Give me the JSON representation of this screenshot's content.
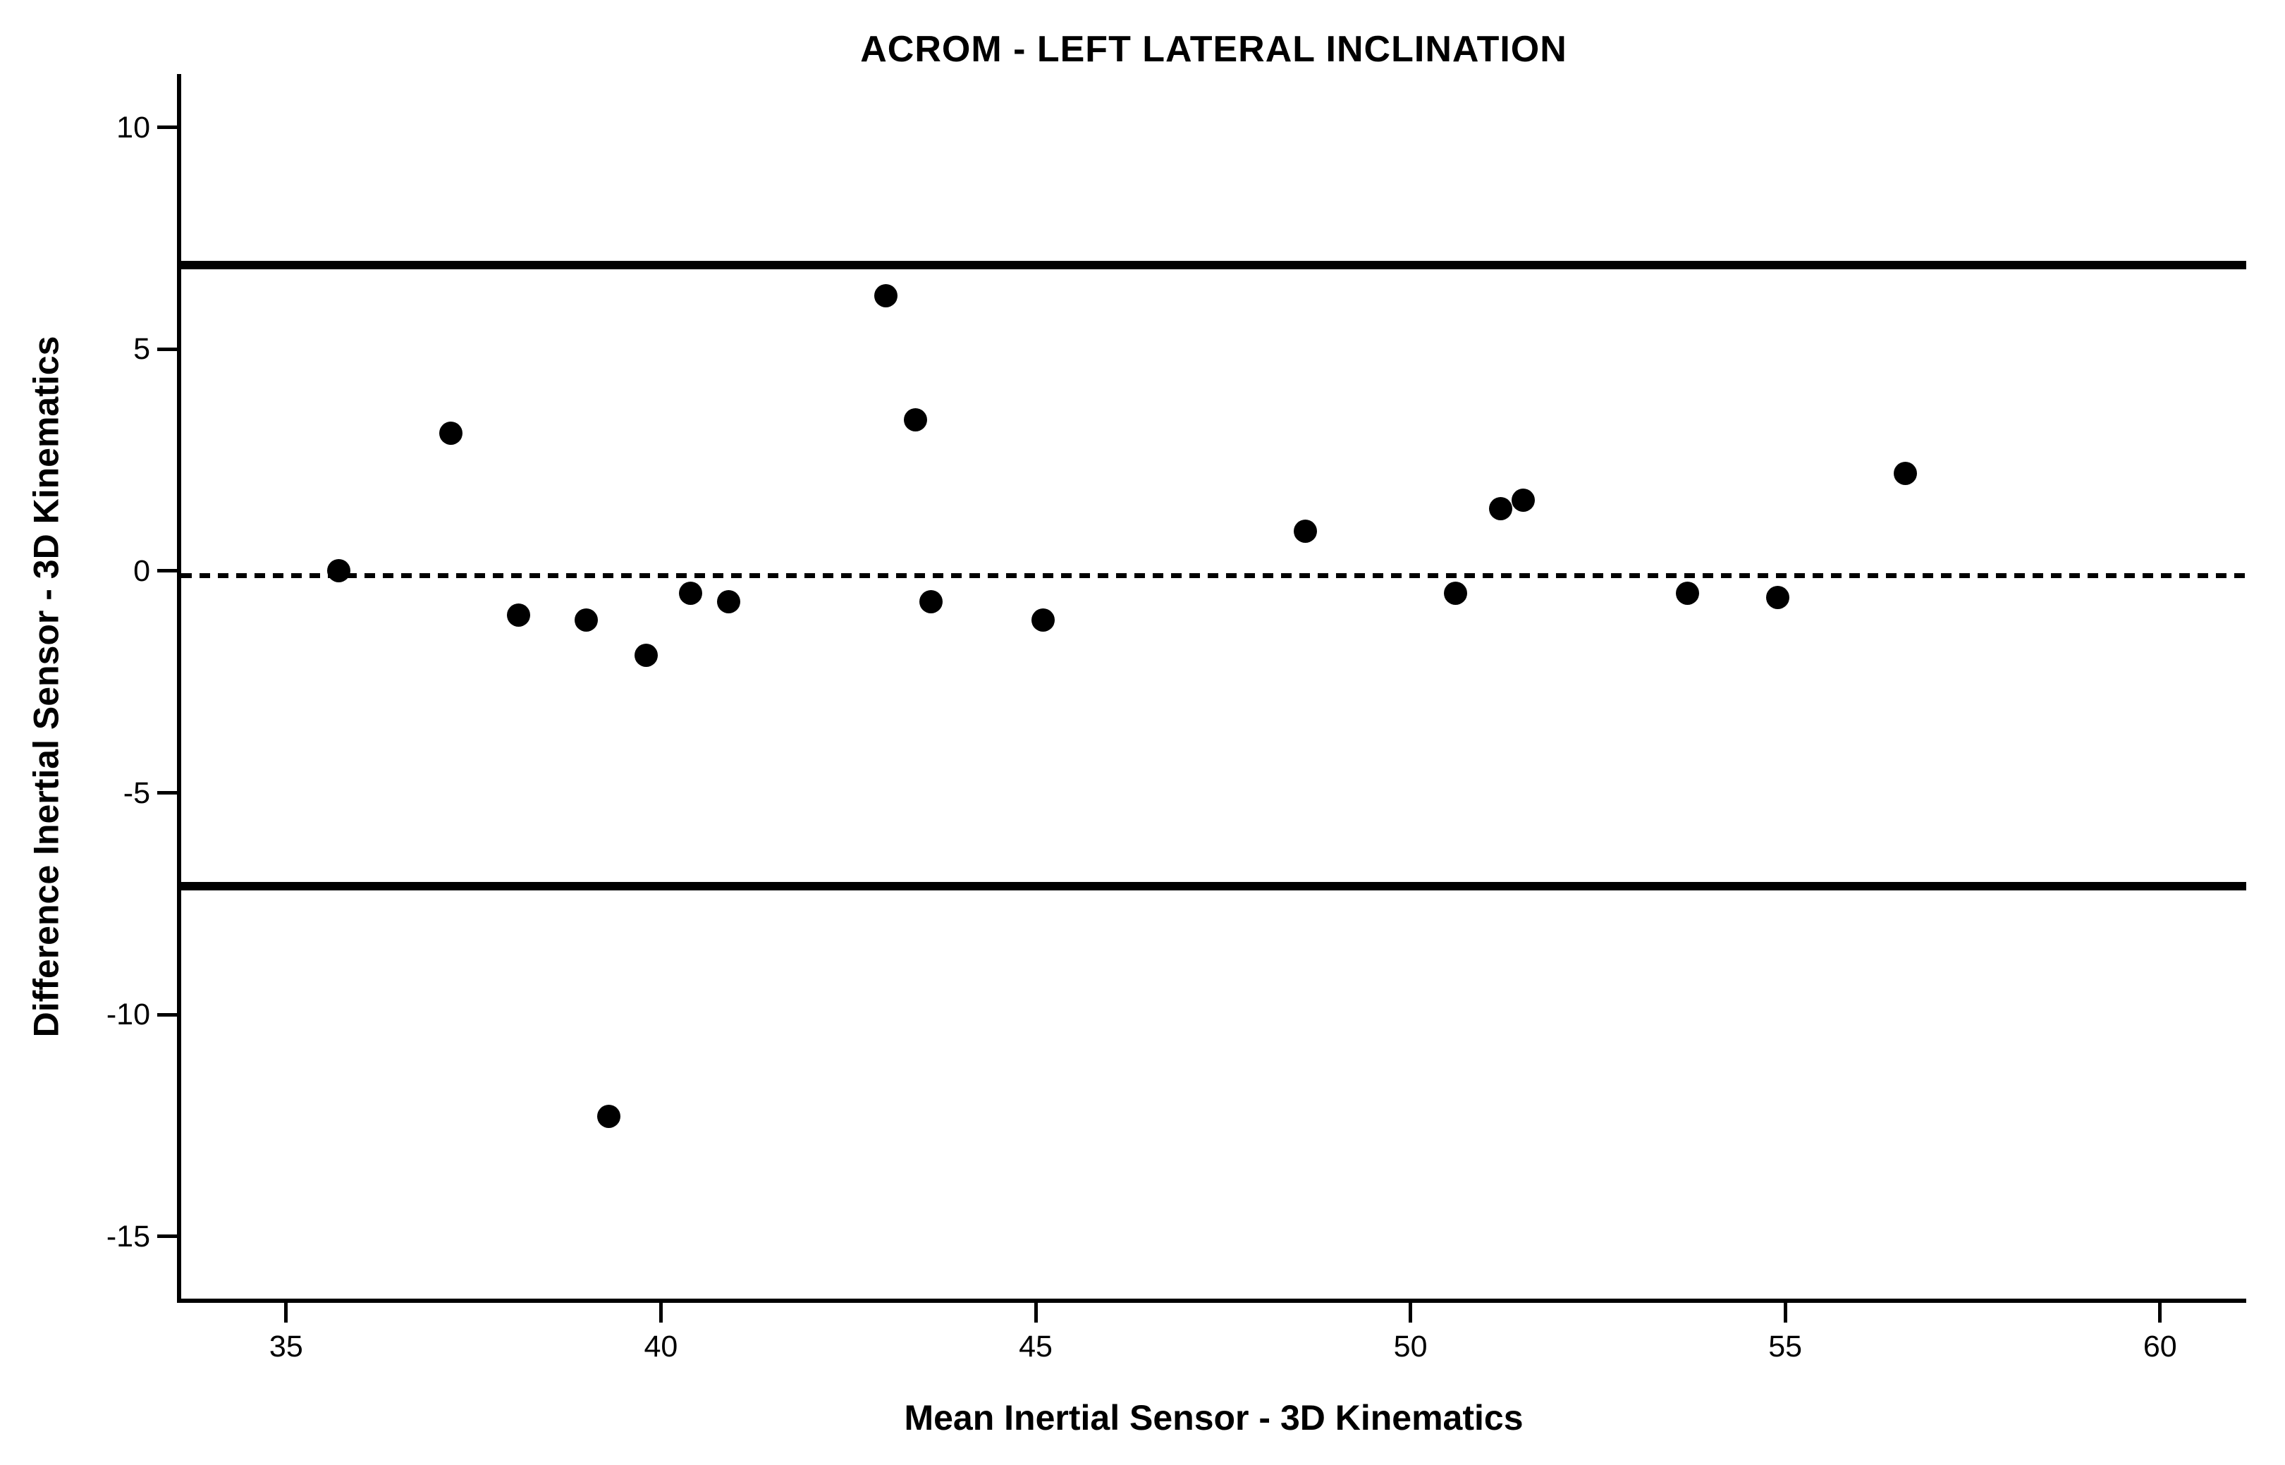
{
  "chart_data": {
    "type": "scatter",
    "title": "ACROM - LEFT LATERAL INCLINATION",
    "xlabel": "Mean Inertial Sensor - 3D Kinematics",
    "ylabel": "Difference Inertial Sensor - 3D Kinematics",
    "xlim": [
      33.6,
      61.15
    ],
    "ylim": [
      -16.4,
      11.2
    ],
    "x_ticks": [
      35,
      40,
      45,
      50,
      55,
      60
    ],
    "y_ticks": [
      10,
      5,
      0,
      -5,
      -10,
      -15
    ],
    "grid": false,
    "legend": "none",
    "points_xy": [
      [
        35.7,
        0.0
      ],
      [
        37.2,
        3.1
      ],
      [
        38.1,
        -1.0
      ],
      [
        39.0,
        -1.1
      ],
      [
        39.3,
        -12.3
      ],
      [
        39.8,
        -1.9
      ],
      [
        40.4,
        -0.5
      ],
      [
        40.9,
        -0.7
      ],
      [
        43.0,
        6.2
      ],
      [
        43.4,
        3.4
      ],
      [
        43.6,
        -0.7
      ],
      [
        45.1,
        -1.1
      ],
      [
        48.6,
        0.9
      ],
      [
        50.6,
        -0.5
      ],
      [
        51.2,
        1.4
      ],
      [
        51.5,
        1.6
      ],
      [
        53.7,
        -0.5
      ],
      [
        54.9,
        -0.6
      ],
      [
        56.6,
        2.2
      ]
    ],
    "reference_lines": {
      "mean_difference": -0.1,
      "upper_limit_of_agreement": 6.9,
      "lower_limit_of_agreement": -7.1
    },
    "colors": {
      "point": "#000000",
      "line": "#000000",
      "background": "#ffffff"
    }
  }
}
